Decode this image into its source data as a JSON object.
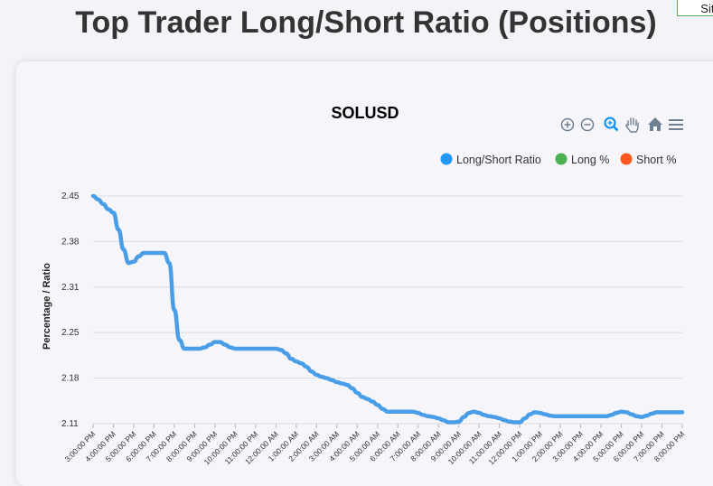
{
  "page": {
    "title": "Top Trader Long/Short Ratio (Positions)",
    "site_button": "Site"
  },
  "toolbar": {
    "icons": [
      "zoom-in-icon",
      "zoom-out-icon",
      "selection-zoom-icon",
      "pan-icon",
      "reset-home-icon",
      "menu-icon"
    ]
  },
  "colors": {
    "ratio": "#4a9ee8",
    "long": "#4caf50",
    "short": "#ff5722",
    "grid": "#dddddd",
    "active_icon": "#008ffb",
    "icon": "#6e8192"
  },
  "chart_data": {
    "type": "line",
    "title": "SOLUSD",
    "ylabel": "Percentage / Ratio",
    "xlabel": "",
    "ylim": [
      2.11,
      2.45
    ],
    "y_ticks": [
      "2.45",
      "2.38",
      "2.31",
      "2.25",
      "2.18",
      "2.11"
    ],
    "x_tick_labels": [
      "3:00:00 PM",
      "4:00:00 PM",
      "5:00:00 PM",
      "6:00:00 PM",
      "7:00:00 PM",
      "8:00:00 PM",
      "9:00:00 PM",
      "10:00:00 PM",
      "11:00:00 PM",
      "12:00:00 AM",
      "1:00:00 AM",
      "2:00:00 AM",
      "3:00:00 AM",
      "4:00:00 AM",
      "5:00:00 AM",
      "6:00:00 AM",
      "7:00:00 AM",
      "8:00:00 AM",
      "9:00:00 AM",
      "10:00:00 AM",
      "11:00:00 AM",
      "12:00:00 PM",
      "1:00:00 PM",
      "2:00:00 PM",
      "3:00:00 PM",
      "4:00:00 PM",
      "5:00:00 PM",
      "6:00:00 PM",
      "7:00:00 PM",
      "8:00:00 PM"
    ],
    "legend": [
      "Long/Short Ratio",
      "Long %",
      "Short %"
    ],
    "legend_position": "top-right",
    "grid": true,
    "series": [
      {
        "name": "Long/Short Ratio",
        "x": [
          0,
          0.25,
          0.5,
          0.75,
          1,
          1.25,
          1.5,
          1.75,
          2,
          2.25,
          2.5,
          2.75,
          3,
          3.25,
          3.5,
          3.75,
          4,
          4.25,
          4.5,
          4.75,
          5,
          5.25,
          5.5,
          5.75,
          6,
          6.25,
          6.5,
          6.75,
          7,
          7.25,
          7.5,
          7.75,
          8,
          8.25,
          8.5,
          8.75,
          9,
          9.25,
          9.5,
          9.75,
          10,
          10.25,
          10.5,
          10.75,
          11,
          11.25,
          11.5,
          11.75,
          12,
          12.25,
          12.5,
          12.75,
          13,
          13.25,
          13.5,
          13.75,
          14,
          14.25,
          14.5,
          14.75,
          15,
          15.25,
          15.5,
          15.75,
          16,
          16.25,
          16.5,
          16.75,
          17,
          17.25,
          17.5,
          17.75,
          18,
          18.25,
          18.5,
          18.75,
          19,
          19.25,
          19.5,
          19.75,
          20,
          20.25,
          20.5,
          20.75,
          21,
          21.25,
          21.5,
          21.75,
          22,
          22.25,
          22.5,
          22.75,
          23,
          23.25,
          23.5,
          23.75,
          24,
          24.25,
          24.5,
          24.75,
          25,
          25.25,
          25.5,
          25.75,
          26,
          26.25,
          26.5,
          26.75,
          27,
          27.25,
          27.5,
          27.75,
          28,
          28.25,
          28.5,
          28.75,
          29
        ],
        "values": [
          2.45,
          2.445,
          2.438,
          2.43,
          2.425,
          2.4,
          2.37,
          2.35,
          2.352,
          2.36,
          2.365,
          2.365,
          2.365,
          2.365,
          2.365,
          2.35,
          2.28,
          2.235,
          2.222,
          2.222,
          2.222,
          2.222,
          2.224,
          2.228,
          2.232,
          2.232,
          2.228,
          2.224,
          2.222,
          2.222,
          2.222,
          2.222,
          2.222,
          2.222,
          2.222,
          2.222,
          2.222,
          2.22,
          2.215,
          2.207,
          2.203,
          2.2,
          2.195,
          2.188,
          2.183,
          2.18,
          2.178,
          2.175,
          2.172,
          2.17,
          2.168,
          2.163,
          2.156,
          2.15,
          2.147,
          2.143,
          2.138,
          2.132,
          2.128,
          2.128,
          2.128,
          2.128,
          2.128,
          2.128,
          2.126,
          2.123,
          2.121,
          2.12,
          2.118,
          2.115,
          2.112,
          2.112,
          2.113,
          2.12,
          2.126,
          2.128,
          2.126,
          2.123,
          2.121,
          2.12,
          2.118,
          2.115,
          2.113,
          2.112,
          2.112,
          2.118,
          2.124,
          2.127,
          2.126,
          2.124,
          2.122,
          2.121,
          2.121,
          2.121,
          2.121,
          2.121,
          2.121,
          2.121,
          2.121,
          2.121,
          2.121,
          2.121,
          2.123,
          2.126,
          2.128,
          2.127,
          2.124,
          2.121,
          2.12,
          2.122,
          2.125,
          2.127,
          2.127,
          2.127,
          2.127,
          2.127,
          2.127
        ]
      }
    ]
  }
}
